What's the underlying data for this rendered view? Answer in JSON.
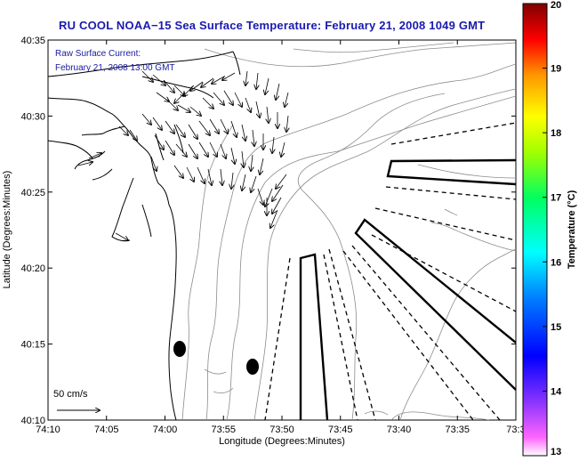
{
  "title": "RU COOL  NOAA−15  Sea Surface Temperature:  February 21, 2008 1049 GMT",
  "current_info": {
    "line1": "Raw Surface Current:",
    "line2": "February 21, 2008 13:00 GMT"
  },
  "scale_label": "50 cm/s",
  "x_axis": {
    "label": "Longitude (Degrees:Minutes)",
    "ticks": [
      "74:10",
      "74:05",
      "74:00",
      "73:55",
      "73:50",
      "73:45",
      "73:40",
      "73:35",
      "73:3"
    ]
  },
  "y_axis": {
    "label": "Latitude (Degrees:Minutes)",
    "ticks": [
      "40:35",
      "40:30",
      "40:25",
      "40:20",
      "40:15",
      "40:10"
    ]
  },
  "colorbar": {
    "label": "Temperature (°C)",
    "ticks": [
      "20",
      "19",
      "18",
      "17",
      "16",
      "15",
      "14",
      "13"
    ],
    "min": 13,
    "max": 20
  },
  "colors": {
    "title": "#1a1ab0",
    "info_text": "#1a1aa0",
    "land_outline": "#000000",
    "bathymetry": "#888888"
  }
}
